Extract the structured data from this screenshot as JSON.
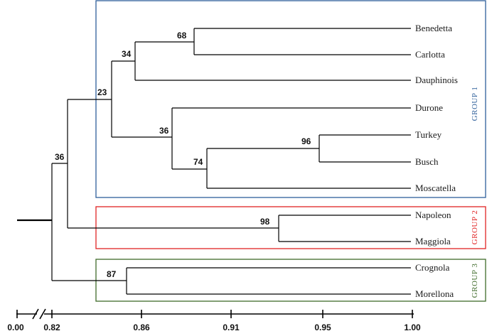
{
  "groups": [
    {
      "id": "group1",
      "label": "GROUP 1",
      "color": "#2e5f9a"
    },
    {
      "id": "group2",
      "label": "GROUP 2",
      "color": "#e02424"
    },
    {
      "id": "group3",
      "label": "GROUP 3",
      "color": "#3f6b2a"
    }
  ],
  "leaves": [
    {
      "id": "benedetta",
      "label": "Benedetta"
    },
    {
      "id": "carlotta",
      "label": "Carlotta"
    },
    {
      "id": "dauphinois",
      "label": "Dauphinois"
    },
    {
      "id": "durone",
      "label": "Durone"
    },
    {
      "id": "turkey",
      "label": "Turkey"
    },
    {
      "id": "busch",
      "label": "Busch"
    },
    {
      "id": "moscatella",
      "label": "Moscatella"
    },
    {
      "id": "napoleon",
      "label": "Napoleon"
    },
    {
      "id": "maggiola",
      "label": "Maggiola"
    },
    {
      "id": "crognola",
      "label": "Crognola"
    },
    {
      "id": "morellona",
      "label": "Morellona"
    }
  ],
  "support_values": [
    {
      "id": "n68",
      "label": "68"
    },
    {
      "id": "n34",
      "label": "34"
    },
    {
      "id": "n23",
      "label": "23"
    },
    {
      "id": "n36a",
      "label": "36"
    },
    {
      "id": "n96",
      "label": "96"
    },
    {
      "id": "n74",
      "label": "74"
    },
    {
      "id": "n36b",
      "label": "36"
    },
    {
      "id": "n98",
      "label": "98"
    },
    {
      "id": "n87",
      "label": "87"
    }
  ],
  "axis": {
    "ticks": [
      {
        "id": "t000",
        "label": "0.00"
      },
      {
        "id": "t082",
        "label": "0.82"
      },
      {
        "id": "t086",
        "label": "0.86"
      },
      {
        "id": "t091",
        "label": "0.91"
      },
      {
        "id": "t095",
        "label": "0.95"
      },
      {
        "id": "t100",
        "label": "1.00"
      }
    ]
  }
}
